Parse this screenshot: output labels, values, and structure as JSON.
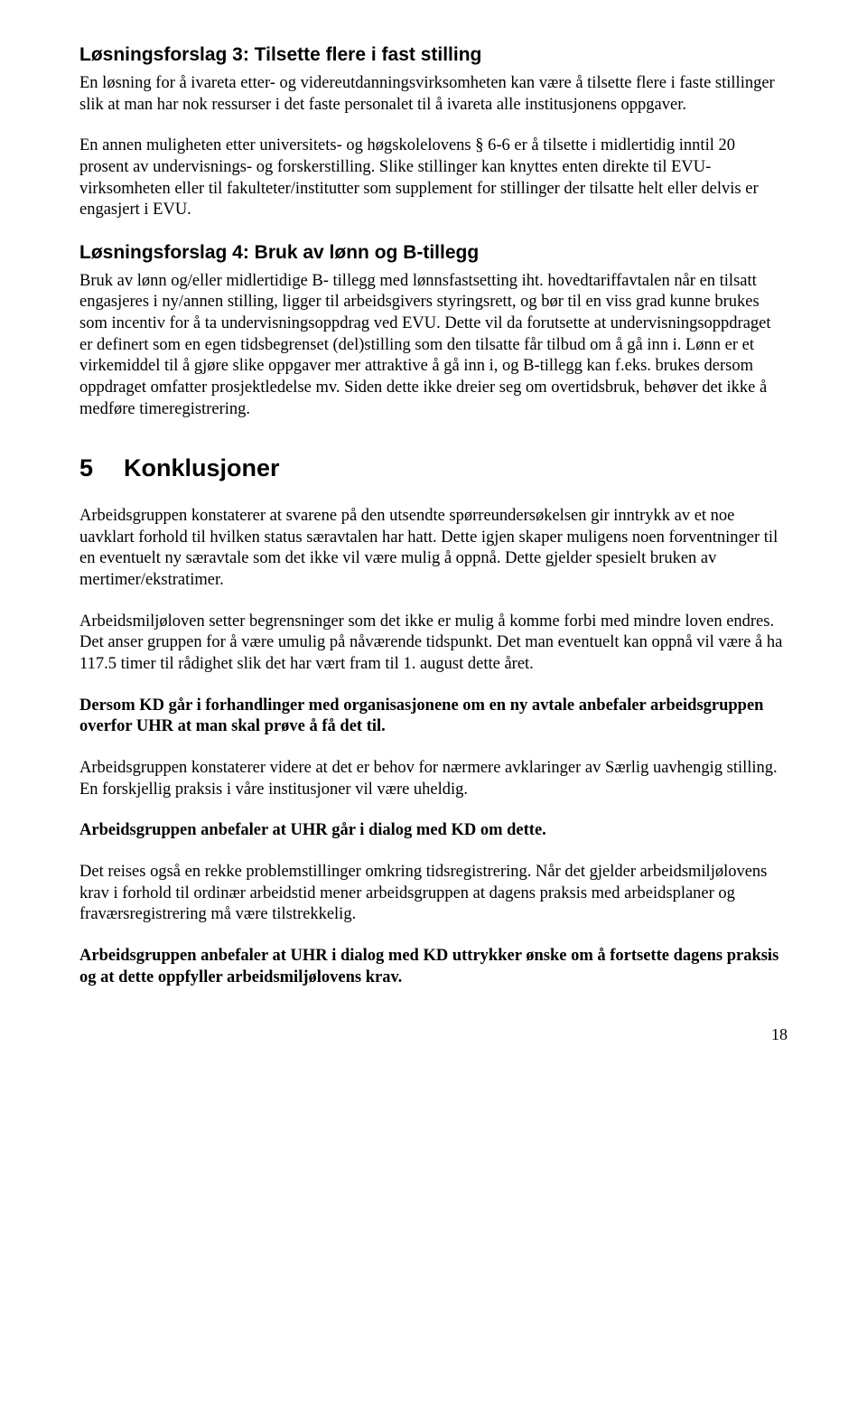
{
  "solution3": {
    "heading": "Løsningsforslag 3: Tilsette flere i fast stilling",
    "p1": "En løsning for å ivareta etter- og videreutdanningsvirksomheten kan være å tilsette flere i faste stillinger slik at man har nok ressurser i det faste personalet til å ivareta alle institusjonens oppgaver.",
    "p2": "En annen muligheten etter universitets- og høgskolelovens § 6-6 er å tilsette i midlertidig inntil 20 prosent av undervisnings- og forskerstilling. Slike stillinger kan knyttes enten direkte til EVU-virksomheten eller til fakulteter/institutter som supplement for stillinger der tilsatte helt eller delvis er engasjert i EVU."
  },
  "solution4": {
    "heading": "Løsningsforslag 4: Bruk av lønn og B-tillegg",
    "p1": "Bruk av lønn og/eller midlertidige B- tillegg med lønnsfastsetting iht. hovedtariffavtalen når en tilsatt engasjeres i ny/annen stilling, ligger til arbeidsgivers styringsrett, og bør til en viss grad kunne brukes som incentiv for å ta undervisningsoppdrag ved EVU. Dette vil da forutsette at undervisningsoppdraget er definert som en egen tidsbegrenset (del)stilling som den tilsatte får tilbud om å gå inn i. Lønn er et virkemiddel til å gjøre slike oppgaver mer attraktive å gå inn i, og B-tillegg kan f.eks. brukes dersom oppdraget omfatter prosjektledelse mv. Siden dette ikke dreier seg om overtidsbruk, behøver det ikke å medføre timeregistrering."
  },
  "conclusions": {
    "number": "5",
    "title": "Konklusjoner",
    "p1": "Arbeidsgruppen konstaterer at svarene på den utsendte spørreundersøkelsen gir inntrykk av et noe uavklart forhold til hvilken status særavtalen har hatt. Dette igjen skaper muligens noen forventninger til en eventuelt ny særavtale som det ikke vil være mulig å oppnå. Dette gjelder spesielt bruken av mertimer/ekstratimer.",
    "p2": "Arbeidsmiljøloven setter begrensninger som det ikke er mulig å komme forbi med mindre loven endres. Det anser gruppen for å være umulig på nåværende tidspunkt. Det man eventuelt kan oppnå vil være å ha 117.5 timer til rådighet slik det har vært fram til 1. august dette året.",
    "p3": "Dersom KD går i forhandlinger med organisasjonene om en ny avtale anbefaler arbeidsgruppen overfor UHR at man skal prøve å få det til.",
    "p4": "Arbeidsgruppen konstaterer videre at det er behov for nærmere avklaringer av Særlig uavhengig stilling. En forskjellig praksis i våre institusjoner vil være uheldig.",
    "p5": "Arbeidsgruppen anbefaler at UHR går i dialog med KD om dette.",
    "p6": "Det reises også en rekke problemstillinger omkring tidsregistrering. Når det gjelder arbeidsmiljølovens krav i forhold til ordinær arbeidstid mener arbeidsgruppen at dagens praksis med arbeidsplaner og fraværsregistrering må være tilstrekkelig.",
    "p7": "Arbeidsgruppen anbefaler at UHR i dialog med KD uttrykker ønske om å fortsette dagens praksis og at dette oppfyller arbeidsmiljølovens krav."
  },
  "pageNumber": "18"
}
